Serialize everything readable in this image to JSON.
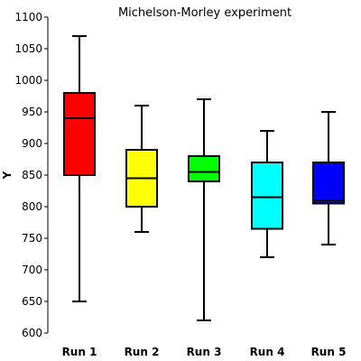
{
  "chart_data": {
    "type": "box",
    "title": "Michelson-Morley experiment",
    "xlabel": "",
    "ylabel": "Y",
    "ylim": [
      600,
      1100
    ],
    "yticks": [
      600,
      650,
      700,
      750,
      800,
      850,
      900,
      950,
      1000,
      1050,
      1100
    ],
    "grid": false,
    "categories": [
      "Run 1",
      "Run 2",
      "Run 3",
      "Run 4",
      "Run 5"
    ],
    "boxes": [
      {
        "min": 650,
        "q1": 850,
        "median": 940,
        "q3": 980,
        "max": 1070,
        "color": "#ff0000"
      },
      {
        "min": 760,
        "q1": 800,
        "median": 845,
        "q3": 890,
        "max": 960,
        "color": "#ffff00"
      },
      {
        "min": 620,
        "q1": 840,
        "median": 855,
        "q3": 880,
        "max": 970,
        "color": "#00ff00"
      },
      {
        "min": 720,
        "q1": 765,
        "median": 815,
        "q3": 870,
        "max": 920,
        "color": "#00ffff"
      },
      {
        "min": 740,
        "q1": 805,
        "median": 810,
        "q3": 870,
        "max": 950,
        "color": "#0000ff"
      }
    ]
  }
}
